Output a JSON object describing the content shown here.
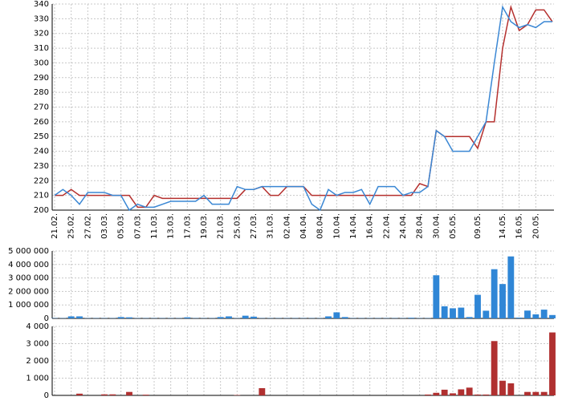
{
  "chart_data": [
    {
      "type": "line",
      "categories": [
        "21.02.",
        null,
        "25.02.",
        null,
        "27.02.",
        null,
        "03.03.",
        null,
        "05.03.",
        null,
        "07.03.",
        null,
        "11.03.",
        null,
        "13.03.",
        null,
        "17.03.",
        null,
        "19.03.",
        null,
        "21.03.",
        null,
        "25.03.",
        null,
        "27.03.",
        null,
        "31.03.",
        null,
        "02.04.",
        null,
        "04.04.",
        null,
        "08.04.",
        null,
        "10.04.",
        null,
        "14.04.",
        null,
        "16.04.",
        null,
        "22.04.",
        null,
        "24.04.",
        null,
        "28.04.",
        null,
        "30.04.",
        null,
        "05.05.",
        null,
        null,
        "09.05.",
        null,
        null,
        "14.05.",
        null,
        "16.05.",
        null,
        "20.05.",
        null,
        null
      ],
      "series": [
        {
          "color": "#b5302e",
          "values": [
            210,
            210,
            214,
            210,
            210,
            210,
            210,
            210,
            210,
            210,
            202,
            202,
            210,
            208,
            208,
            208,
            208,
            208,
            208,
            208,
            208,
            208,
            208,
            214,
            214,
            216,
            210,
            210,
            216,
            216,
            216,
            210,
            210,
            210,
            210,
            210,
            210,
            210,
            210,
            210,
            210,
            210,
            210,
            210,
            218,
            216,
            254,
            250,
            250,
            250,
            250,
            242,
            260,
            260,
            310,
            338,
            322,
            326,
            336,
            336,
            328
          ]
        },
        {
          "color": "#3a87d4",
          "values": [
            210,
            214,
            210,
            204,
            212,
            212,
            212,
            210,
            210,
            200,
            204,
            202,
            202,
            204,
            206,
            206,
            206,
            206,
            210,
            204,
            204,
            204,
            216,
            214,
            214,
            216,
            216,
            216,
            216,
            216,
            216,
            204,
            200,
            214,
            210,
            212,
            212,
            214,
            204,
            216,
            216,
            216,
            210,
            212,
            212,
            216,
            254,
            250,
            240,
            240,
            240,
            250,
            260,
            300,
            338,
            328,
            324,
            326,
            324,
            328,
            328
          ]
        }
      ],
      "ylim": [
        200,
        340
      ],
      "yticks": [
        200,
        210,
        220,
        230,
        240,
        250,
        260,
        270,
        280,
        290,
        300,
        310,
        320,
        330,
        340
      ],
      "grid": true
    },
    {
      "type": "bar",
      "color": "#2f86d6",
      "values": [
        20000,
        20000,
        150000,
        150000,
        20000,
        20000,
        20000,
        20000,
        100000,
        80000,
        20000,
        20000,
        20000,
        20000,
        20000,
        20000,
        80000,
        20000,
        20000,
        20000,
        100000,
        150000,
        20000,
        200000,
        130000,
        20000,
        20000,
        20000,
        20000,
        20000,
        20000,
        20000,
        20000,
        150000,
        450000,
        100000,
        20000,
        20000,
        20000,
        20000,
        20000,
        20000,
        20000,
        50000,
        20000,
        20000,
        3200000,
        900000,
        750000,
        800000,
        100000,
        1750000,
        570000,
        3650000,
        2550000,
        4600000,
        60000,
        580000,
        300000,
        650000,
        250000
      ],
      "ylim": [
        0,
        5000000
      ],
      "yticks": [
        0,
        {
          "value": 1000000,
          "label": "1 000 000"
        },
        {
          "value": 2000000,
          "label": "2 000 000"
        },
        {
          "value": 3000000,
          "label": "3 000 000"
        },
        {
          "value": 4000000,
          "label": "4 000 000"
        },
        {
          "value": 5000000,
          "label": "5 000 000"
        }
      ],
      "grid": true
    },
    {
      "type": "bar",
      "color": "#b03030",
      "values": [
        0,
        0,
        0,
        100,
        0,
        0,
        60,
        60,
        0,
        200,
        0,
        40,
        0,
        0,
        0,
        0,
        0,
        0,
        0,
        0,
        0,
        0,
        20,
        0,
        0,
        420,
        0,
        0,
        0,
        0,
        0,
        0,
        0,
        0,
        0,
        0,
        0,
        0,
        0,
        0,
        0,
        0,
        0,
        0,
        0,
        50,
        150,
        330,
        120,
        350,
        450,
        50,
        50,
        3150,
        850,
        700,
        0,
        200,
        200,
        200,
        3650
      ],
      "ylim": [
        0,
        4000
      ],
      "yticks": [
        0,
        {
          "value": 1000,
          "label": "1 000"
        },
        {
          "value": 2000,
          "label": "2 000"
        },
        {
          "value": 3000,
          "label": "3 000"
        },
        {
          "value": 4000,
          "label": "4 000"
        }
      ],
      "grid": true
    }
  ]
}
